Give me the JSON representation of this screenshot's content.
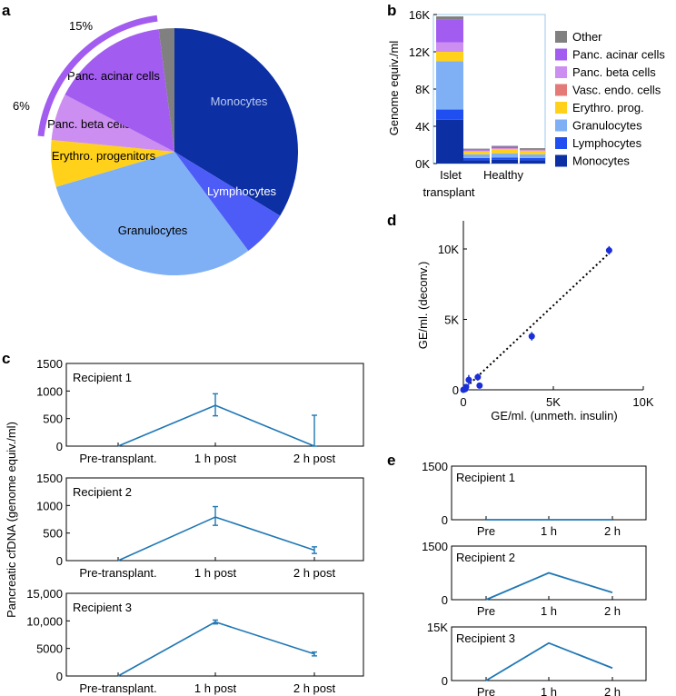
{
  "panels": {
    "a": "a",
    "b": "b",
    "c": "c",
    "d": "d",
    "e": "e"
  },
  "colors": {
    "Other": "#808080",
    "Panc. acinar cells": "#a35cf0",
    "Panc. beta cells": "#cc8ef0",
    "Vasc. endo. cells": "#e47a78",
    "Erythro. prog.": "#ffd11a",
    "Granulocytes": "#7fb0f5",
    "Lymphocytes": "#1f4ff0",
    "Monocytes": "#0c2fa3",
    "line": "#1f77b4",
    "scatter": "#1a2fd8"
  },
  "chart_data": [
    {
      "id": "a",
      "type": "pie",
      "slices": [
        {
          "label": "Monocytes",
          "value": 33,
          "color": "#0c2fa3"
        },
        {
          "label": "Lymphocytes",
          "value": 6,
          "color": "#4d5cf7"
        },
        {
          "label": "Granulocytes",
          "value": 30,
          "color": "#7fb0f5"
        },
        {
          "label": "Erythro. progenitors",
          "value": 6,
          "color": "#ffd11a"
        },
        {
          "label": "Panc. beta cells",
          "value": 6,
          "color": "#cc8ef0"
        },
        {
          "label": "Panc. acinar cells",
          "value": 15,
          "color": "#a35cf0"
        },
        {
          "label": "",
          "value": 2,
          "color": "#808080"
        }
      ],
      "annotations": [
        "15%",
        "6%"
      ]
    },
    {
      "id": "b",
      "type": "bar",
      "stacked": true,
      "categories": [
        "Islet transplant",
        "Healthy",
        "",
        ""
      ],
      "category_labels": [
        "Islet",
        "transplant",
        "Healthy"
      ],
      "ylabel": "Genome equiv./ml",
      "yticks": [
        "0K",
        "4K",
        "8K",
        "12K",
        "16K"
      ],
      "ylim": [
        0,
        16000
      ],
      "series": [
        {
          "name": "Monocytes",
          "values": [
            4700,
            350,
            400,
            350
          ]
        },
        {
          "name": "Lymphocytes",
          "values": [
            1100,
            250,
            250,
            250
          ]
        },
        {
          "name": "Granulocytes",
          "values": [
            5200,
            400,
            450,
            400
          ]
        },
        {
          "name": "Erythro. prog.",
          "values": [
            1000,
            300,
            450,
            350
          ]
        },
        {
          "name": "Vasc. endo. cells",
          "values": [
            0,
            50,
            50,
            50
          ]
        },
        {
          "name": "Panc. beta cells",
          "values": [
            1000,
            50,
            50,
            50
          ]
        },
        {
          "name": "Panc. acinar cells",
          "values": [
            2500,
            100,
            150,
            100
          ]
        },
        {
          "name": "Other",
          "values": [
            300,
            100,
            100,
            100
          ]
        }
      ],
      "legend": [
        "Other",
        "Panc. acinar cells",
        "Panc. beta cells",
        "Vasc. endo. cells",
        "Erythro. prog.",
        "Granulocytes",
        "Lymphocytes",
        "Monocytes"
      ]
    },
    {
      "id": "c",
      "type": "line",
      "ylabel": "Pancreatic cfDNA (genome equiv./ml)",
      "x": [
        "Pre-transplant.",
        "1 h post",
        "2 h post"
      ],
      "subplots": [
        {
          "title": "Recipient 1",
          "yticks": [
            "0",
            "500",
            "1000",
            "1500"
          ],
          "ylim": [
            0,
            1500
          ],
          "values": [
            0,
            740,
            0
          ],
          "err_low": [
            0,
            190,
            0
          ],
          "err_high": [
            0,
            210,
            560
          ]
        },
        {
          "title": "Recipient  2",
          "yticks": [
            "0",
            "500",
            "1000",
            "1500"
          ],
          "ylim": [
            0,
            1500
          ],
          "values": [
            0,
            790,
            190
          ],
          "err_low": [
            0,
            150,
            60
          ],
          "err_high": [
            0,
            190,
            60
          ]
        },
        {
          "title": "Recipient  3",
          "yticks": [
            "0",
            "5000",
            "10,000",
            "15,000"
          ],
          "ylim": [
            0,
            15000
          ],
          "values": [
            0,
            9800,
            4000
          ],
          "err_low": [
            0,
            350,
            350
          ],
          "err_high": [
            0,
            350,
            350
          ]
        }
      ]
    },
    {
      "id": "d",
      "type": "scatter",
      "xlabel": "GE/ml. (unmeth. insulin)",
      "ylabel": "GE/ml. (deconv.)",
      "xticks": [
        "0",
        "5K",
        "10K"
      ],
      "yticks": [
        "0",
        "5K",
        "10K"
      ],
      "xlim": [
        0,
        10000
      ],
      "ylim": [
        0,
        12000
      ],
      "x": [
        0,
        100,
        150,
        300,
        800,
        900,
        3800,
        8100
      ],
      "y": [
        0,
        50,
        200,
        700,
        900,
        300,
        3800,
        9900
      ],
      "yerr": [
        100,
        100,
        150,
        350,
        250,
        200,
        300,
        300
      ],
      "fit": [
        [
          0,
          0
        ],
        [
          8100,
          9700
        ]
      ]
    },
    {
      "id": "e",
      "type": "line",
      "x": [
        "Pre",
        "1 h",
        "2 h"
      ],
      "subplots": [
        {
          "title": "Recipient 1",
          "yticks": [
            "0",
            "1500"
          ],
          "ylim": [
            0,
            1500
          ],
          "values": [
            0,
            0,
            0
          ]
        },
        {
          "title": "Recipient 2",
          "yticks": [
            "0",
            "1500"
          ],
          "ylim": [
            0,
            1500
          ],
          "values": [
            0,
            750,
            200
          ]
        },
        {
          "title": "Recipient 3",
          "yticks": [
            "0",
            "15K"
          ],
          "ylim": [
            0,
            15000
          ],
          "values": [
            0,
            10500,
            3500
          ]
        }
      ]
    }
  ]
}
